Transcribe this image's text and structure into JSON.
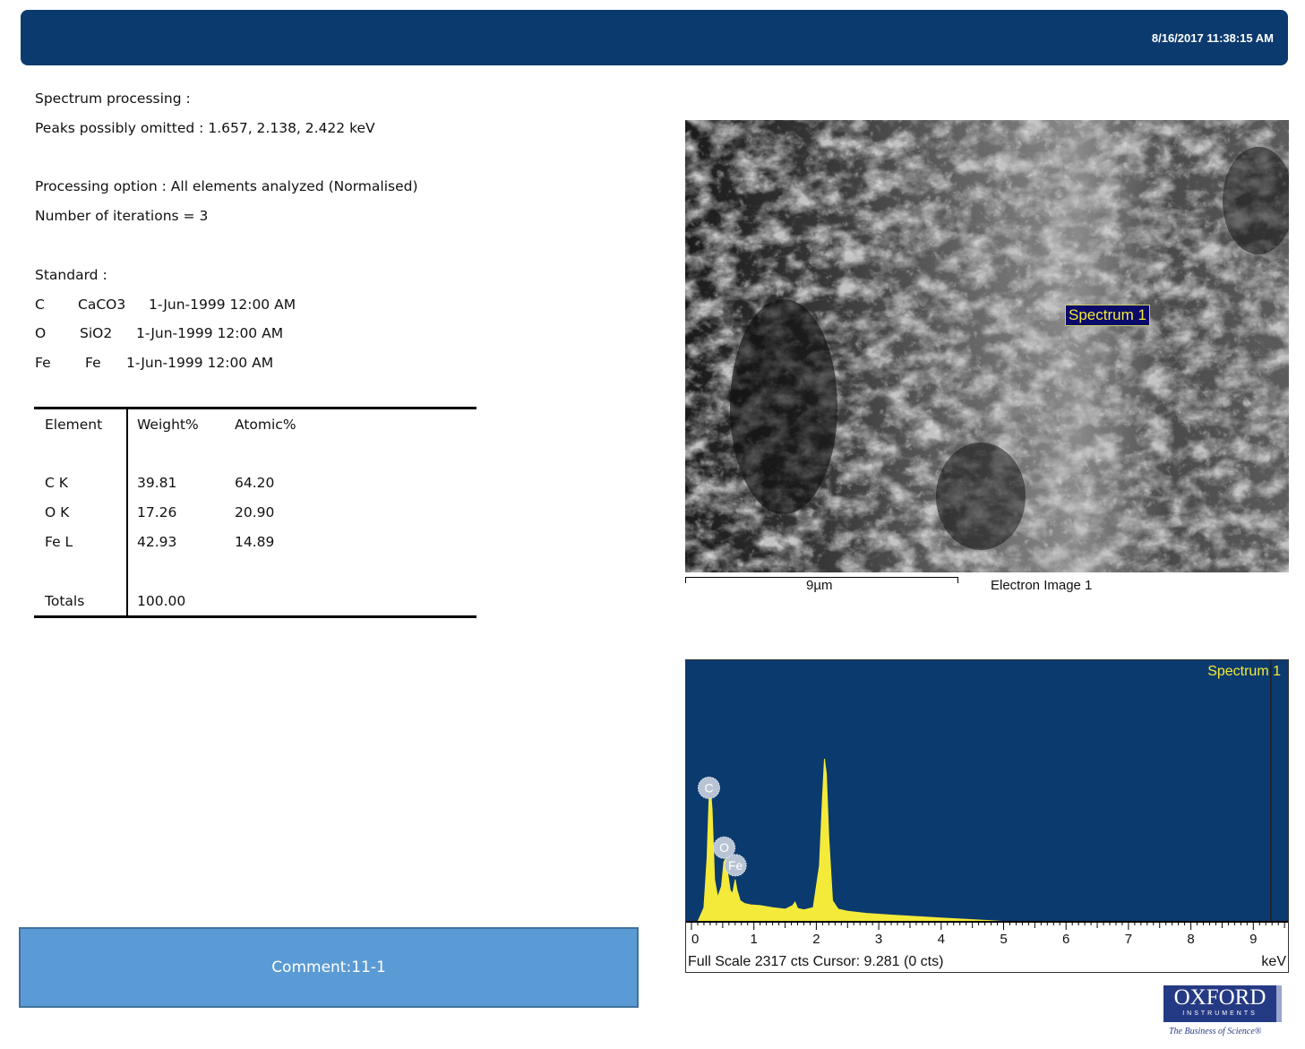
{
  "header": {
    "timestamp": "8/16/2017 11:38:15 AM"
  },
  "processing": {
    "title": "Spectrum processing :",
    "peaks": "Peaks possibly omitted : 1.657, 2.138, 2.422 keV",
    "option": "Processing option : All elements analyzed (Normalised)",
    "iterations": "Number of iterations = 3"
  },
  "standard": {
    "title": "Standard :",
    "rows": [
      {
        "element": "C",
        "compound": "CaCO3",
        "date": "1-Jun-1999 12:00 AM"
      },
      {
        "element": "O",
        "compound": "SiO2",
        "date": "1-Jun-1999 12:00 AM"
      },
      {
        "element": "Fe",
        "compound": "Fe",
        "date": "1-Jun-1999 12:00 AM"
      }
    ]
  },
  "results_table": {
    "headers": [
      "Element",
      "Weight%",
      "Atomic%"
    ],
    "rows": [
      {
        "element": "C K",
        "weight": "39.81",
        "atomic": "64.20"
      },
      {
        "element": "O K",
        "weight": "17.26",
        "atomic": "20.90"
      },
      {
        "element": "Fe L",
        "weight": "42.93",
        "atomic": "14.89"
      }
    ],
    "totals_label": "Totals",
    "totals_weight": "100.00"
  },
  "electron_image": {
    "spectrum_label": "Spectrum 1",
    "scale_label": "9µm",
    "caption": "Electron Image 1"
  },
  "spectrum": {
    "title": "Spectrum 1",
    "footer_left": "Full Scale 2317 cts Cursor: 9.281  (0 cts)",
    "footer_right": "keV",
    "colors": {
      "background": "#0b3a6e",
      "trace": "#f4ea3a",
      "label": "#b8c4d4"
    }
  },
  "chart_data": {
    "type": "area",
    "title": "Spectrum 1",
    "xlabel": "keV",
    "ylabel": "",
    "xlim": [
      0,
      9.6
    ],
    "ylim": [
      0,
      2317
    ],
    "x_ticks": [
      "0",
      "1",
      "2",
      "3",
      "4",
      "5",
      "6",
      "7",
      "8",
      "9"
    ],
    "series": [
      {
        "name": "Spectrum 1",
        "x": [
          0.1,
          0.2,
          0.25,
          0.28,
          0.3,
          0.33,
          0.37,
          0.42,
          0.48,
          0.52,
          0.55,
          0.58,
          0.62,
          0.66,
          0.7,
          0.73,
          0.78,
          0.85,
          0.95,
          1.1,
          1.3,
          1.5,
          1.62,
          1.66,
          1.7,
          1.8,
          1.95,
          2.05,
          2.1,
          2.13,
          2.16,
          2.2,
          2.26,
          2.35,
          2.5,
          2.8,
          3.2,
          3.6,
          4.0,
          4.4,
          4.8,
          5.0,
          5.2,
          9.6
        ],
        "y": [
          0,
          200,
          900,
          1700,
          1950,
          1600,
          600,
          350,
          500,
          850,
          900,
          700,
          450,
          400,
          600,
          450,
          300,
          260,
          240,
          230,
          200,
          180,
          230,
          280,
          190,
          170,
          200,
          800,
          1800,
          2317,
          2100,
          1200,
          300,
          180,
          150,
          120,
          95,
          75,
          55,
          35,
          15,
          5,
          0,
          0
        ]
      }
    ],
    "peak_labels": [
      {
        "label": "C",
        "x": 0.28
      },
      {
        "label": "O",
        "x": 0.525
      },
      {
        "label": "Fe",
        "x": 0.705
      }
    ],
    "cursor_x": 9.281
  },
  "comment": {
    "text": "Comment:11-1"
  },
  "logo": {
    "line1": "OXFORD",
    "line2": "INSTRUMENTS",
    "tagline": "The Business of Science®"
  }
}
